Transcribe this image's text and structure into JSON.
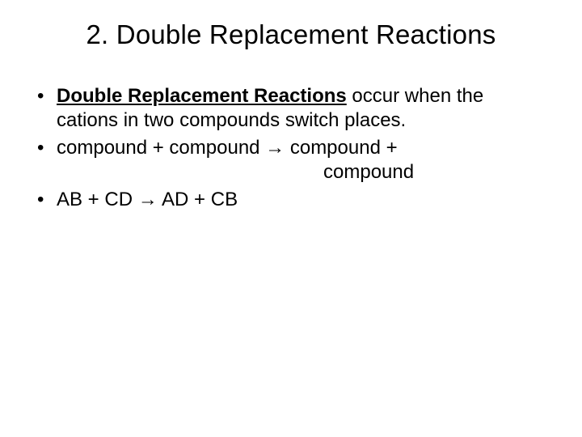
{
  "title": "2. Double Replacement Reactions",
  "bullets": {
    "b1": {
      "bold_underline": "Double Replacement Reactions",
      "rest": " occur when the cations in two compounds switch places."
    },
    "b2": {
      "line1": "compound + compound → compound +",
      "line2": "compound"
    },
    "b3": "AB + CD → AD + CB"
  },
  "colors": {
    "text": "#000000",
    "background": "#ffffff"
  },
  "typography": {
    "title_fontsize": 33,
    "body_fontsize": 24,
    "font_family": "Arial"
  }
}
